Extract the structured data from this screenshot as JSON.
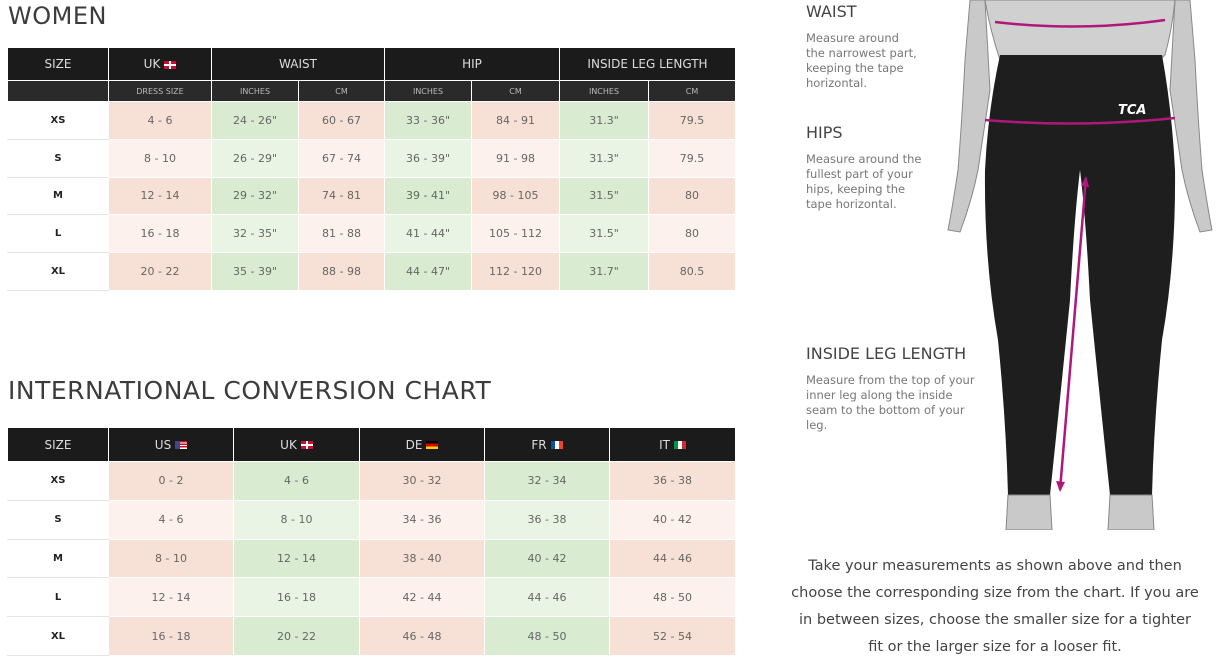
{
  "women": {
    "title": "WOMEN",
    "headers": [
      "SIZE",
      "UK",
      "WAIST",
      "HIP",
      "INSIDE LEG LENGTH"
    ],
    "subheaders": [
      "",
      "DRESS SIZE",
      "INCHES",
      "CM",
      "INCHES",
      "CM",
      "INCHES",
      "CM"
    ],
    "rows": [
      [
        "XS",
        "4 - 6",
        "24 - 26\"",
        "60 - 67",
        "33 - 36\"",
        "84 - 91",
        "31.3\"",
        "79.5"
      ],
      [
        "S",
        "8 - 10",
        "26 - 29\"",
        "67 - 74",
        "36 - 39\"",
        "91 - 98",
        "31.3\"",
        "79.5"
      ],
      [
        "M",
        "12 - 14",
        "29 - 32\"",
        "74 - 81",
        "39 - 41\"",
        "98 - 105",
        "31.5\"",
        "80"
      ],
      [
        "L",
        "16 - 18",
        "32 - 35\"",
        "81 - 88",
        "41 - 44\"",
        "105 - 112",
        "31.5\"",
        "80"
      ],
      [
        "XL",
        "20 - 22",
        "35 - 39\"",
        "88 - 98",
        "44 - 47\"",
        "112 - 120",
        "31.7\"",
        "80.5"
      ]
    ]
  },
  "international": {
    "title": "INTERNATIONAL CONVERSION CHART",
    "headers": [
      "SIZE",
      "US",
      "UK",
      "DE",
      "FR",
      "IT"
    ],
    "flags": [
      "",
      "us-flag-icon",
      "uk-flag-icon",
      "de-flag-icon",
      "fr-flag-icon",
      "it-flag-icon"
    ],
    "rows": [
      [
        "XS",
        "0 - 2",
        "4 - 6",
        "30 - 32",
        "32 - 34",
        "36 - 38"
      ],
      [
        "S",
        "4 - 6",
        "8 - 10",
        "34 - 36",
        "36 - 38",
        "40 - 42"
      ],
      [
        "M",
        "8 - 10",
        "12 - 14",
        "38 - 40",
        "40 - 42",
        "44 - 46"
      ],
      [
        "L",
        "12 - 14",
        "16 - 18",
        "42 - 44",
        "44 - 46",
        "48 - 50"
      ],
      [
        "XL",
        "16 - 18",
        "20 - 22",
        "46 - 48",
        "48 - 50",
        "52 - 54"
      ]
    ]
  },
  "guide": {
    "waist_title": "WAIST",
    "waist_text": "Measure around the narrowest part, keeping the tape horizontal.",
    "hips_title": "HIPS",
    "hips_text": "Measure around the fullest part of your hips, keeping the tape horizontal.",
    "leg_title": "INSIDE LEG LENGTH",
    "leg_text": "Measure from the top of your inner leg along the inside seam to the bottom of your leg.",
    "note": "Take your measurements as shown above and then choose the corresponding size from the chart. If you are in between sizes, choose the smaller size for a tighter fit or the larger size for a looser fit.",
    "logo": "TCA"
  },
  "colors": {
    "header": "#1b1b1b",
    "pink": "#f7e1d7",
    "green": "#d9ebd0",
    "measure_line": "#b0177a"
  }
}
